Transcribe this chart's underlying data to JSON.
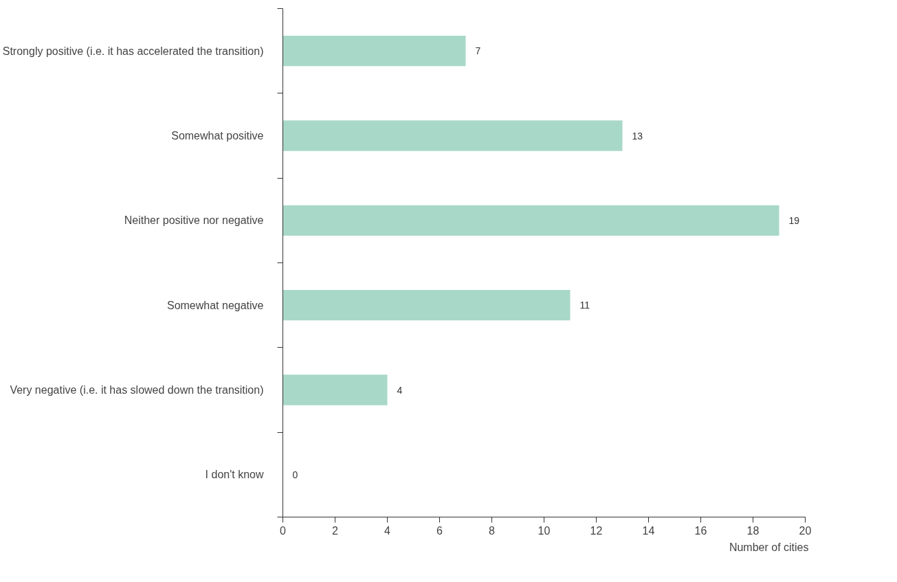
{
  "chart_data": {
    "type": "bar",
    "orientation": "horizontal",
    "xlabel": "Number of cities",
    "categories": [
      "Strongly positive (i.e. it has accelerated the transition)",
      "Somewhat positive",
      "Neither positive nor negative",
      "Somewhat negative",
      "Very negative (i.e. it has slowed down the transition)",
      "I don't know"
    ],
    "values": [
      7,
      13,
      19,
      11,
      4,
      0
    ],
    "color": "#a8d8c8",
    "xlim": [
      0,
      20
    ],
    "xticks": [
      0,
      2,
      4,
      6,
      8,
      10,
      12,
      14,
      16,
      18,
      20
    ],
    "grid": false,
    "data_labels": true
  }
}
